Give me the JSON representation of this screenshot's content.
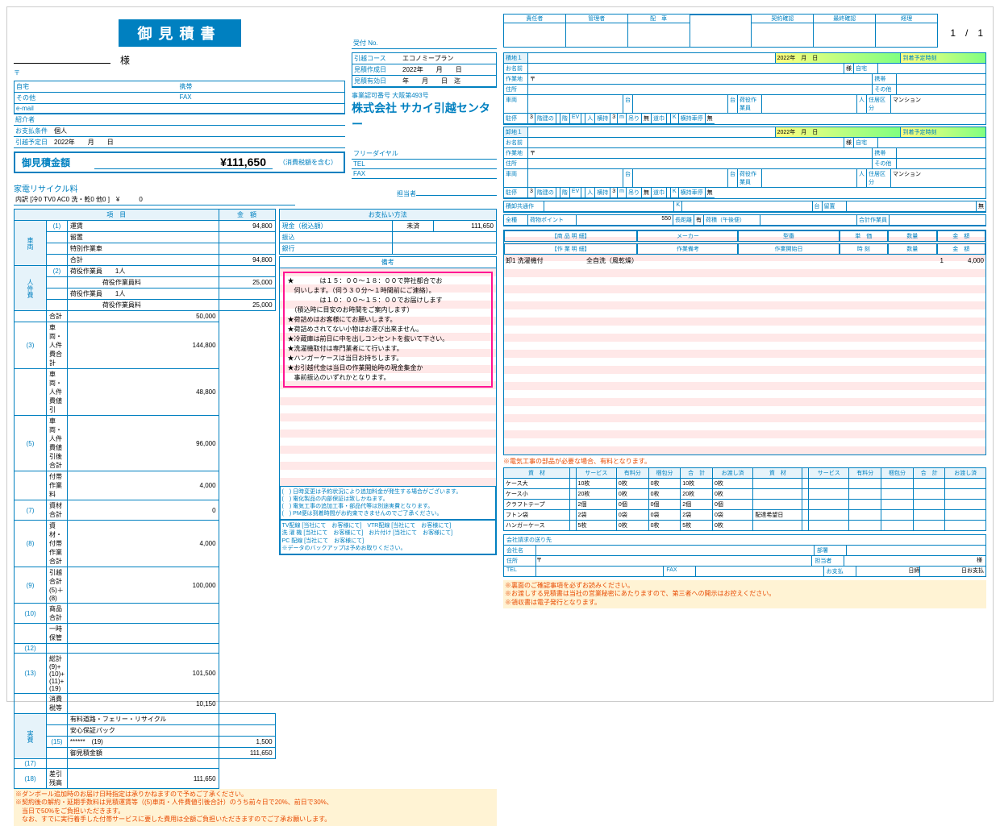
{
  "title": "御見積書",
  "page_num": "1　/　1",
  "customer": {
    "sama": "様",
    "postal": "〒",
    "home": "自宅",
    "mobile": "携帯",
    "other": "その他",
    "fax": "FAX",
    "email": "e-mail",
    "referrer": "紹介者",
    "pay_cond": "お支払条件",
    "pay_cond_val": "個人",
    "move_date": "引越予定日",
    "move_date_val": "2022年　　月　　日"
  },
  "reception": {
    "no": "受付 No.",
    "course_lbl": "引越コース",
    "course_val": "エコノミープラン",
    "created_lbl": "見積作成日",
    "created_val": "2022年　　月　　日",
    "valid_lbl": "見積有効日",
    "valid_val": "年　　月　　日　迄",
    "license": "事業認可番号 大阪第493号",
    "company": "株式会社 サカイ引越センター",
    "freedial": "フリーダイヤル",
    "tel": "TEL",
    "fax": "FAX",
    "person": "担当者"
  },
  "quote": {
    "lbl": "御見積金額",
    "val": "¥111,650",
    "tax": "（消費税額を含む）"
  },
  "recycle": {
    "title": "家電リサイクル料",
    "items": "内訳 [冷0  TV0  AC0  洗・乾0  他0 ]　¥　　　0"
  },
  "itemtbl": {
    "hdr_item": "項　目",
    "hdr_amt": "金　額",
    "rows": [
      {
        "cat": "車両",
        "idx": "(1)",
        "label": "運賃",
        "amt": "94,800"
      },
      {
        "cat": "",
        "idx": "",
        "label": "留置",
        "amt": ""
      },
      {
        "cat": "",
        "idx": "",
        "label": "特別作業車",
        "amt": ""
      },
      {
        "cat": "",
        "idx": "",
        "label": "合計",
        "amt": "94,800"
      },
      {
        "cat": "人件費",
        "idx": "(2)",
        "label": "荷役作業員　　1人",
        "amt": ""
      },
      {
        "cat": "",
        "idx": "",
        "label": "　　　　　荷役作業員料",
        "amt": "25,000"
      },
      {
        "cat": "",
        "idx": "",
        "label": "荷役作業員　　1人",
        "amt": ""
      },
      {
        "cat": "",
        "idx": "",
        "label": "　　　　　荷役作業員料",
        "amt": "25,000"
      },
      {
        "cat": "",
        "idx": "",
        "label": "合計",
        "amt": "50,000"
      },
      {
        "cat": "",
        "idx": "(3)",
        "label": "車両・人件費合計",
        "amt": "144,800"
      },
      {
        "cat": "",
        "idx": "",
        "label": "車両・人件費値引",
        "amt": "48,800"
      },
      {
        "cat": "",
        "idx": "(5)",
        "label": "車両・人件費値引後合計",
        "amt": "96,000"
      },
      {
        "cat": "",
        "idx": "",
        "label": "付帯作業料",
        "amt": "4,000"
      },
      {
        "cat": "",
        "idx": "(7)",
        "label": "資材合計",
        "amt": "0"
      },
      {
        "cat": "",
        "idx": "(8)",
        "label": "資材・付帯作業合計",
        "amt": "4,000"
      },
      {
        "cat": "",
        "idx": "(9)",
        "label": "引越合計　(5)＋(8)",
        "amt": "100,000"
      },
      {
        "cat": "",
        "idx": "(10)",
        "label": "商品合計",
        "amt": ""
      },
      {
        "cat": "",
        "idx": "",
        "label": "一時保管",
        "amt": ""
      },
      {
        "cat": "",
        "idx": "(12)",
        "label": "",
        "amt": ""
      },
      {
        "cat": "",
        "idx": "(13)",
        "label": "総計　(9)+(10)+(11)+(19)",
        "amt": "101,500"
      },
      {
        "cat": "",
        "idx": "",
        "label": "消費税等",
        "amt": "10,150"
      },
      {
        "cat": "実費",
        "idx": "",
        "label": "有料道路・フェリー・リサイクル",
        "amt": ""
      },
      {
        "cat": "",
        "idx": "",
        "label": "安心保証パック",
        "amt": ""
      },
      {
        "cat": "",
        "idx": "(15)",
        "label": "******　(19)",
        "amt": "1,500"
      },
      {
        "cat": "",
        "idx": "",
        "label": "御見積金額",
        "amt": "111,650"
      },
      {
        "cat": "",
        "idx": "(17)",
        "label": "",
        "amt": ""
      },
      {
        "cat": "",
        "idx": "(18)",
        "label": "差引残高",
        "amt": "111,650"
      }
    ]
  },
  "payment": {
    "hdr": "お支払い方法",
    "cash": "現金（税込額）",
    "status": "未済",
    "amt": "111,650",
    "transfer": "振込",
    "bank": "銀行"
  },
  "remarks": {
    "hdr": "備考",
    "lines": [
      "★　　　　は１５：００～１８：００で弊社都合でお",
      "　伺いします。（伺う３０分～１時間前にご連絡）。",
      "　　　　　は１０：００～１５：００でお届けします",
      "　（積込時に目安のお時間をご案内します）",
      "★荷詰めはお客様にてお願いします。",
      "★荷詰めされてない小物はお運び出来ません。",
      "★冷蔵庫は前日に中を出しコンセントを抜いて下さい。",
      "★洗濯機取付は専門業者にて行います。",
      "★ハンガーケースは当日お持ちします。",
      "★お引越代金は当日の作業開始時の現金集金か",
      "　事前振込のいずれかとなります。"
    ],
    "footer": [
      "(　) 日時変更は予約状況により追加料金が発生する場合がございます。",
      "(　) 電化製品の内部保証は致しかねます。",
      "(　) 電気工事の追加工事・部品代等は別途実費となります。",
      "(　) PM便は到着時間がお約束できませんのでご了承ください。"
    ],
    "svc": [
      "TV配線 [当社にて　お客様にて]　VTR配線 [当社にて　お客様にて]",
      "洗 濯 機 [当社にて　お客様にて]　お片付け [当社にて　お客様にて]",
      "PC 配線 [当社にて　お客様にて]",
      "※データのバックアップは予めお取りください。"
    ]
  },
  "left_footer": [
    "※ダンボール追加時のお届け日時指定は承りかねますので予めご了承ください。",
    "※契約後の解約・延期手数料は見積運賃等（(5)車両・人件費値引後合計）のうち前々日で20%、前日で30%、",
    "　当日で50%をご負担いただきます。",
    "　なお、すでに実行着手した付帯サービスに要した費用は全額ご負担いただきますのでご了承お願いします。"
  ],
  "stamps": [
    "責任者",
    "管理者",
    "配　車",
    "",
    "契約確認",
    "最終確認",
    "経理"
  ],
  "loc1": {
    "title": "積地１",
    "date": "2022年　月　日",
    "arrive": "到着予定時刻",
    "name": "お名前",
    "sama": "様",
    "home": "自宅",
    "work": "作業地",
    "mobile": "携帯",
    "addr": "住所",
    "postal": "〒",
    "other": "その他",
    "car": "車両",
    "units": "台",
    "loadwork": "荷役作業員",
    "people": "人",
    "resid": "住居区分",
    "stay": "駐停",
    "cls": "3",
    "bldg": "階建の",
    "flr": "階",
    "ev": "EV",
    "ev_v": "人",
    "yoko": "横持",
    "yoko_v": "3",
    "m": "m",
    "hang": "吊り",
    "hang_v": "無",
    "road": "道巾",
    "k": "K",
    "yokomochi": "横持車停",
    "mu": "無",
    "mansion": "マンション"
  },
  "loc2": {
    "title": "卸地１",
    "date": "2022年　月　日"
  },
  "common": {
    "title": "積卸共通作",
    "k": "K",
    "units": "台",
    "stay": "留置",
    "mu": "無"
  },
  "totals": {
    "lbl": "全種",
    "pts": "荷物ポイント",
    "pts_v": "550",
    "dist": "長距離",
    "dist_v": "有",
    "arrive": "荷積（午後便）",
    "workers": "合計作業員"
  },
  "goods": {
    "hdr": [
      "【商 品 明 細】",
      "メーカー",
      "型番",
      "単　価",
      "数量",
      "金　額"
    ],
    "work_hdr": [
      "【作 業 明 細】",
      "作業備考",
      "作業開始日",
      "時 刻",
      "数量",
      "金　額"
    ],
    "row": {
      "label": "卸1 洗濯機付",
      "memo": "全自洗（風乾燥）",
      "qty": "1",
      "amt": "4,000"
    }
  },
  "elec_note": "※電気工事の部品が必要な場合、有料となります。",
  "materials": {
    "hdr": [
      "資　材",
      "",
      "サービス",
      "有料分",
      "梱包分",
      "合　計",
      "お渡し済",
      "資　材",
      "",
      "サービス",
      "有料分",
      "梱包分",
      "合　計",
      "お渡し済"
    ],
    "rows": [
      [
        "ケース大",
        "",
        "10枚",
        "0枚",
        "0枚",
        "10枚",
        "0枚",
        "",
        "",
        "",
        "",
        "",
        "",
        ""
      ],
      [
        "ケース小",
        "",
        "20枚",
        "0枚",
        "0枚",
        "20枚",
        "0枚",
        "",
        "",
        "",
        "",
        "",
        "",
        ""
      ],
      [
        "クラフトテープ",
        "",
        "2個",
        "0個",
        "0個",
        "2個",
        "0個",
        "",
        "",
        "",
        "",
        "",
        "",
        ""
      ],
      [
        "フトン袋",
        "",
        "2袋",
        "0袋",
        "0袋",
        "2袋",
        "0袋",
        "配達希望日",
        "",
        "",
        "",
        "",
        "",
        ""
      ],
      [
        "ハンガーケース",
        "",
        "5枚",
        "0枚",
        "0枚",
        "5枚",
        "0枚",
        "",
        "",
        "",
        "",
        "",
        "",
        ""
      ]
    ]
  },
  "billing": {
    "title": "会社請求の送り先",
    "company": "会社名",
    "dept": "部署",
    "addr": "住所",
    "postal": "〒",
    "person": "担当者",
    "sama": "様",
    "tel": "TEL",
    "fax": "FAX",
    "pay": "お支払",
    "date": "日締",
    "payday": "日お支払"
  },
  "right_footer": [
    "※裏面のご確認事項を必ずお読みください。",
    "※お渡しする見積書は当社の営業秘密にあたりますので、第三者への開示はお控えください。",
    "※領収書は電子発行となります。"
  ]
}
